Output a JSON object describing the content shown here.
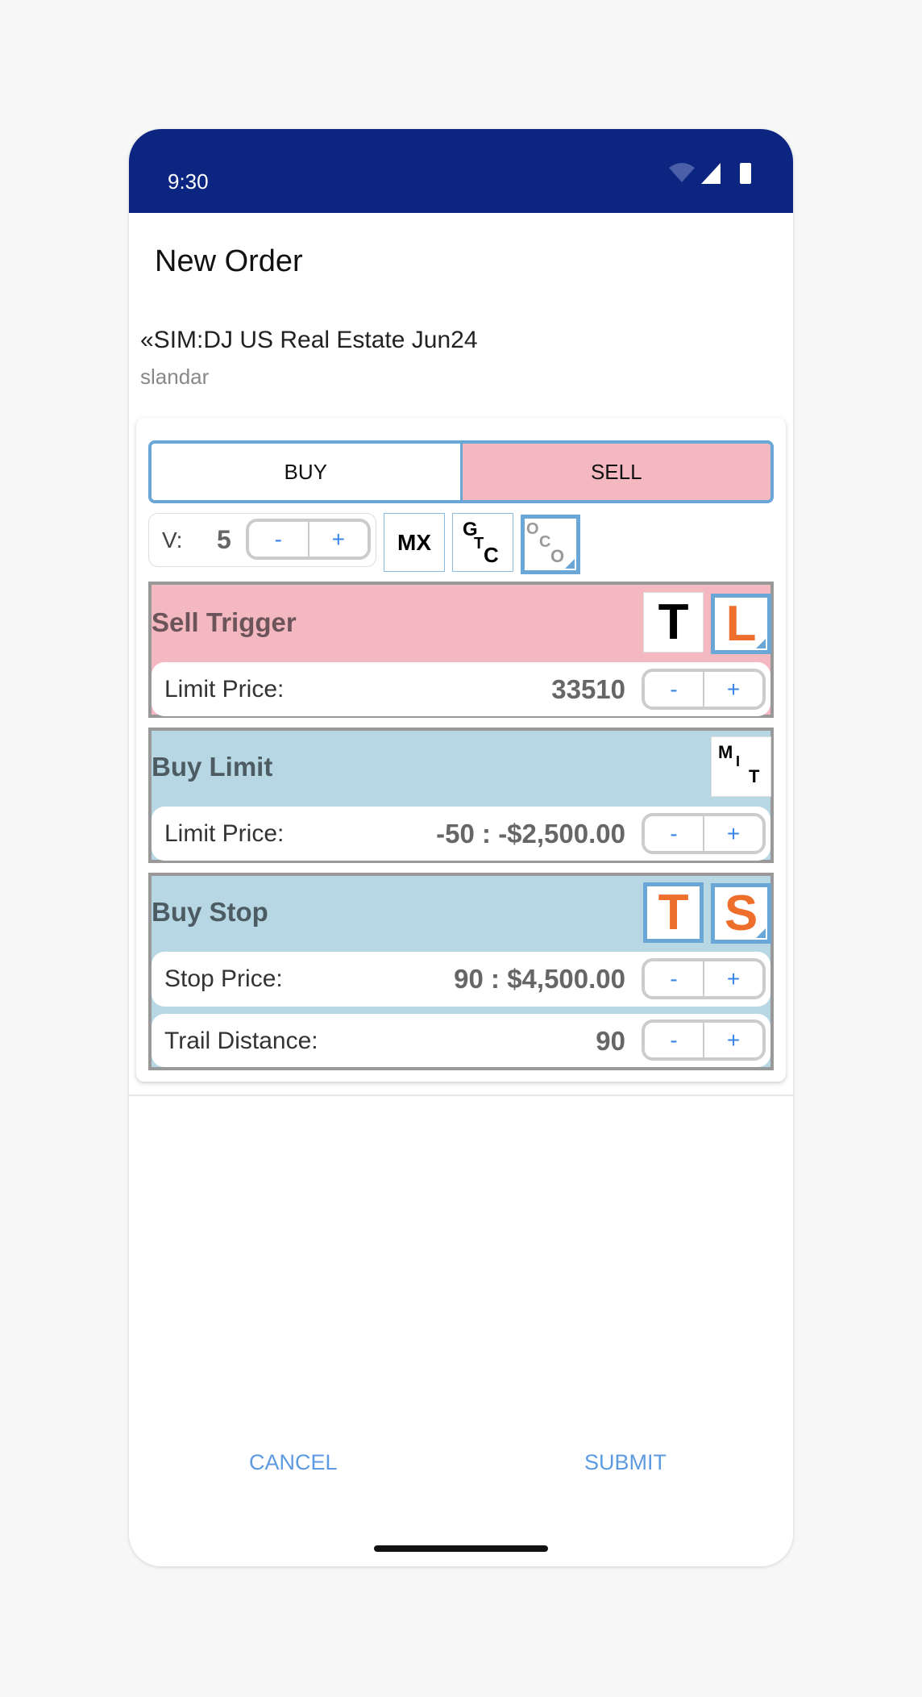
{
  "status_bar": {
    "time": "9:30",
    "icons": [
      "wifi-icon",
      "signal-icon",
      "battery-icon"
    ]
  },
  "header": {
    "title": "New Order"
  },
  "instrument": {
    "name": "«SIM:DJ US Real Estate Jun24",
    "account": "slandar"
  },
  "side_toggle": {
    "buy_label": "BUY",
    "sell_label": "SELL",
    "selected": "SELL"
  },
  "volume": {
    "label": "V:",
    "value": "5",
    "minus": "-",
    "plus": "+"
  },
  "order_flags": {
    "mx": "MX",
    "gtc": [
      "G",
      "T",
      "C"
    ],
    "oco": [
      "O",
      "C",
      "O"
    ],
    "oco_selected": true
  },
  "sell_trigger": {
    "title": "Sell Trigger",
    "btn_t": "T",
    "btn_l": "L",
    "limit_label": "Limit Price:",
    "limit_value": "33510"
  },
  "buy_limit": {
    "title": "Buy Limit",
    "mit": [
      "M",
      "I",
      "T"
    ],
    "limit_label": "Limit Price:",
    "limit_value": "-50 : -$2,500.00"
  },
  "buy_stop": {
    "title": "Buy Stop",
    "btn_t": "T",
    "btn_s": "S",
    "stop_label": "Stop Price:",
    "stop_value": "90 : $4,500.00",
    "trail_label": "Trail Distance:",
    "trail_value": "90"
  },
  "stepper": {
    "minus": "-",
    "plus": "+"
  },
  "footer": {
    "cancel": "CANCEL",
    "submit": "SUBMIT"
  },
  "colors": {
    "status_bar": "#0b2581",
    "sell": "#f4b8c1",
    "buy": "#b6d7e3",
    "accent": "#6aa7d6",
    "orange": "#ee6e2c",
    "link": "#5d9ae2"
  }
}
